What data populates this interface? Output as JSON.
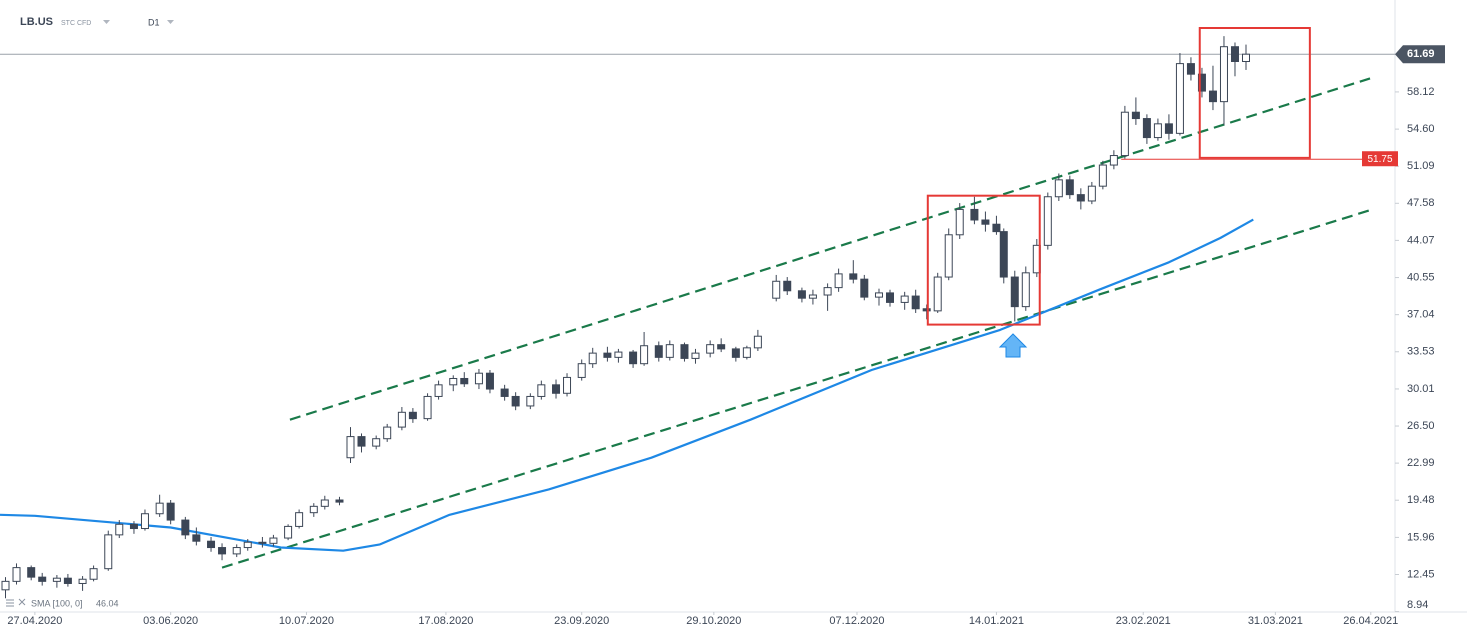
{
  "header": {
    "symbol": "LB.US",
    "instrument": "STC CFD",
    "interval": "D1"
  },
  "chart_data": {
    "type": "candlestick",
    "x": [
      -8,
      -5,
      -1,
      2,
      6,
      9,
      13,
      16,
      20,
      23,
      27,
      30,
      34,
      37,
      41,
      44,
      48,
      51,
      55,
      58,
      62,
      65,
      69,
      72,
      76,
      79,
      83,
      86,
      89,
      93,
      96,
      100,
      103,
      107,
      110,
      114,
      117,
      121,
      124,
      128,
      131,
      135,
      138,
      142,
      145,
      149,
      152,
      156,
      159,
      163,
      166,
      170,
      173,
      177,
      180,
      184,
      187,
      191,
      194,
      197,
      202,
      205,
      209,
      212,
      216,
      219,
      223,
      226,
      230,
      233,
      237,
      240,
      243,
      246,
      249,
      252,
      256,
      259,
      262,
      264,
      267,
      270,
      273,
      276,
      279,
      282,
      285,
      288,
      291,
      294,
      297,
      300,
      303,
      306,
      309,
      312,
      315,
      318,
      321,
      324,
      327,
      330
    ],
    "open": [
      11.0,
      11.8,
      13.1,
      12.2,
      11.8,
      12.1,
      11.6,
      12.0,
      13.0,
      16.2,
      17.2,
      16.8,
      18.2,
      19.2,
      17.6,
      16.2,
      15.6,
      15.0,
      14.4,
      15.0,
      15.5,
      15.4,
      15.9,
      17.0,
      18.3,
      18.9,
      19.5,
      23.5,
      25.5,
      24.6,
      25.3,
      26.4,
      27.8,
      27.2,
      29.3,
      30.4,
      31.0,
      30.5,
      31.5,
      30.0,
      29.3,
      28.4,
      29.3,
      30.4,
      29.6,
      31.1,
      32.4,
      33.4,
      33.0,
      33.5,
      32.4,
      34.1,
      33.0,
      34.2,
      32.9,
      33.4,
      34.2,
      33.8,
      33.0,
      33.9,
      38.6,
      40.2,
      39.3,
      38.6,
      38.9,
      39.6,
      40.9,
      40.4,
      38.7,
      39.1,
      38.2,
      38.8,
      37.6,
      37.4,
      40.6,
      44.6,
      47.0,
      46.0,
      45.6,
      44.9,
      40.6,
      37.8,
      41.0,
      43.6,
      48.2,
      49.8,
      48.4,
      47.8,
      49.2,
      51.2,
      52.1,
      56.2,
      55.6,
      53.8,
      55.1,
      54.2,
      60.8,
      59.8,
      58.2,
      57.2,
      62.4,
      61.0
    ],
    "high": [
      12.2,
      13.5,
      13.3,
      12.6,
      12.4,
      12.5,
      12.3,
      13.3,
      16.6,
      17.6,
      17.5,
      18.6,
      20.0,
      19.5,
      17.9,
      16.9,
      16.0,
      15.4,
      15.3,
      15.8,
      16.0,
      16.2,
      17.2,
      18.6,
      19.2,
      19.9,
      19.8,
      26.4,
      25.8,
      25.6,
      26.7,
      28.3,
      28.2,
      29.6,
      30.8,
      31.3,
      31.6,
      31.9,
      31.8,
      30.4,
      29.7,
      29.6,
      30.8,
      30.9,
      31.5,
      32.8,
      33.9,
      34.0,
      33.8,
      33.7,
      35.4,
      34.5,
      34.6,
      34.4,
      33.8,
      34.6,
      34.8,
      34.0,
      34.1,
      35.6,
      40.8,
      40.6,
      39.6,
      39.4,
      40.0,
      41.4,
      42.2,
      40.8,
      39.5,
      39.4,
      39.2,
      39.4,
      38.0,
      41.0,
      45.2,
      47.6,
      48.2,
      46.8,
      46.4,
      45.2,
      41.2,
      41.6,
      44.2,
      48.6,
      50.4,
      50.2,
      49.0,
      49.6,
      51.6,
      52.6,
      56.8,
      57.6,
      56.0,
      55.6,
      56.0,
      61.8,
      61.4,
      60.4,
      60.6,
      63.4,
      62.8,
      62.6
    ],
    "low": [
      10.2,
      11.5,
      11.9,
      11.4,
      11.2,
      11.3,
      10.9,
      11.8,
      12.8,
      15.9,
      16.3,
      16.6,
      17.9,
      17.2,
      15.8,
      15.2,
      14.6,
      13.8,
      14.1,
      14.7,
      15.0,
      15.1,
      15.7,
      16.8,
      17.9,
      18.6,
      19.0,
      23.0,
      24.0,
      24.3,
      25.0,
      26.1,
      26.8,
      27.0,
      29.0,
      29.8,
      30.2,
      30.0,
      29.6,
      28.9,
      28.0,
      28.1,
      29.0,
      29.1,
      29.3,
      30.8,
      32.0,
      32.6,
      32.5,
      32.0,
      32.2,
      32.6,
      32.7,
      32.6,
      32.4,
      33.0,
      33.5,
      32.6,
      32.8,
      33.6,
      38.3,
      38.9,
      38.2,
      38.0,
      37.4,
      39.2,
      40.0,
      38.4,
      37.9,
      37.8,
      37.5,
      37.2,
      36.6,
      37.2,
      40.3,
      44.2,
      45.6,
      44.9,
      44.6,
      40.0,
      36.4,
      37.4,
      40.6,
      43.2,
      47.8,
      48.0,
      47.0,
      47.5,
      48.9,
      50.8,
      51.8,
      55.0,
      53.2,
      53.5,
      53.6,
      54.0,
      59.2,
      57.6,
      56.4,
      55.0,
      59.6,
      60.2
    ],
    "close": [
      11.8,
      13.1,
      12.2,
      11.8,
      12.1,
      11.6,
      12.0,
      13.0,
      16.2,
      17.2,
      16.8,
      18.2,
      19.2,
      17.6,
      16.2,
      15.6,
      15.0,
      14.4,
      15.0,
      15.5,
      15.4,
      15.9,
      17.0,
      18.3,
      18.9,
      19.5,
      19.3,
      25.5,
      24.6,
      25.3,
      26.4,
      27.8,
      27.2,
      29.3,
      30.4,
      31.0,
      30.5,
      31.5,
      30.0,
      29.3,
      28.4,
      29.3,
      30.4,
      29.6,
      31.1,
      32.4,
      33.4,
      33.0,
      33.5,
      32.4,
      34.1,
      33.0,
      34.2,
      32.9,
      33.4,
      34.2,
      33.8,
      33.0,
      33.9,
      35.0,
      40.2,
      39.3,
      38.6,
      38.9,
      39.6,
      40.9,
      40.4,
      38.7,
      39.1,
      38.2,
      38.8,
      37.6,
      37.4,
      40.6,
      44.6,
      47.0,
      46.0,
      45.6,
      44.9,
      40.6,
      37.8,
      41.0,
      43.6,
      48.2,
      49.8,
      48.4,
      47.8,
      49.2,
      51.2,
      52.1,
      56.2,
      55.6,
      53.8,
      55.1,
      54.2,
      60.8,
      59.8,
      58.2,
      57.2,
      62.4,
      61.0,
      61.69
    ],
    "up_color": "#ffffff",
    "down_color": "#3c4656",
    "outline_color": "#3c4656",
    "xlim": [
      -9.5,
      370.6
    ],
    "xticks": [
      {
        "value": 0,
        "label": "27.04.2020"
      },
      {
        "value": 37,
        "label": "03.06.2020"
      },
      {
        "value": 74,
        "label": "10.07.2020"
      },
      {
        "value": 112,
        "label": "17.08.2020"
      },
      {
        "value": 149,
        "label": "23.09.2020"
      },
      {
        "value": 185,
        "label": "29.10.2020"
      },
      {
        "value": 224,
        "label": "07.12.2020"
      },
      {
        "value": 262,
        "label": "14.01.2021"
      },
      {
        "value": 302,
        "label": "23.02.2021"
      },
      {
        "value": 338,
        "label": "31.03.2021"
      },
      {
        "value": 364,
        "label": "26.04.2021"
      }
    ],
    "ylim": [
      8.9,
      66.82
    ],
    "yticks": [
      8.94,
      12.45,
      15.96,
      19.48,
      22.99,
      {
        "value": 26.5,
        "label": "26.50"
      },
      30.01,
      33.53,
      37.04,
      40.55,
      44.07,
      47.58,
      51.09,
      {
        "value": 54.6,
        "label": "54.60"
      },
      58.12
    ],
    "last_price": 61.69,
    "sma": {
      "name": "SMA [100, 0]",
      "color": "#1e88e5",
      "x": [
        -9.5,
        0,
        37,
        67,
        84,
        94,
        113,
        140,
        168,
        195,
        228,
        263,
        290,
        309,
        323,
        332
      ],
      "values": [
        18.1,
        18.0,
        16.9,
        15.0,
        14.7,
        15.3,
        18.1,
        20.5,
        23.5,
        27.1,
        31.8,
        35.6,
        39.4,
        42.0,
        44.3,
        46.04
      ]
    },
    "trendlines": [
      {
        "color": "#1a7a4a",
        "x": [
          69.5,
          363.8
        ],
        "values": [
          27.1,
          59.4
        ]
      },
      {
        "color": "#1a7a4a",
        "x": [
          51,
          364
        ],
        "values": [
          13.1,
          46.95
        ]
      }
    ],
    "boxes": [
      {
        "color": "#e53935",
        "x": [
          243.3,
          273.8
        ],
        "values": [
          36.1,
          48.3
        ]
      },
      {
        "color": "#e53935",
        "x": [
          317.4,
          347.4
        ],
        "values": [
          51.88,
          64.17
        ]
      }
    ],
    "level": {
      "value": 51.75,
      "from_x": 296,
      "color": "#e53935"
    }
  }
}
